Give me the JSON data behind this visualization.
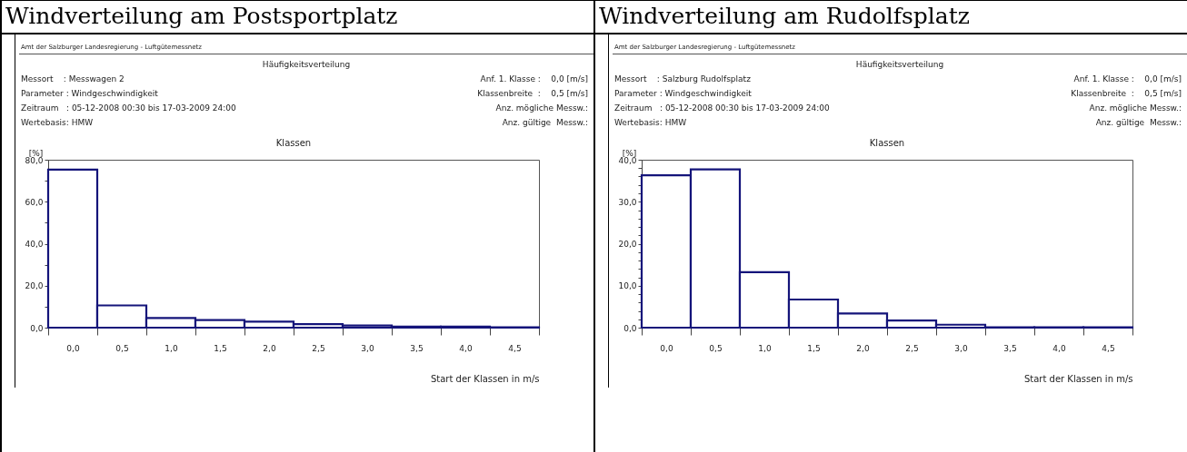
{
  "chart_data": [
    {
      "type": "bar",
      "title": "Windverteilung am Postsportplatz",
      "subtitle": "Häufigkeitsverteilung",
      "annotations": [
        "Amt der Salzburger Landesregierung - Luftgütemessnetz",
        "Messort    : Messwagen 2",
        "Anf. 1. Klasse :    0,0 [m/s]",
        "Parameter : Windgeschwindigkeit",
        "Klassenbreite  :    0,5 [m/s]",
        "Zeitraum   : 05-12-2008 00:30 bis 17-03-2009 24:00",
        "Anz. mögliche Messw.:",
        "Wertebasis: HMW",
        "Anz. gültige  Messw.:",
        "Klassen"
      ],
      "xlabel": "Start der Klassen in m/s",
      "ylabel": "[%]",
      "categories": [
        "0,0",
        "0,5",
        "1,0",
        "1,5",
        "2,0",
        "2,5",
        "3,0",
        "3,5",
        "4,0",
        "4,5"
      ],
      "values": [
        75.3,
        10.6,
        4.6,
        3.6,
        2.9,
        1.7,
        1.0,
        0.5,
        0.5,
        0.2
      ],
      "color": "#14147a",
      "ylim": [
        0,
        80
      ],
      "yticks": [
        {
          "value": 0,
          "label": "0,0"
        },
        {
          "value": 10,
          "label": null
        },
        {
          "value": 20,
          "label": "20,0"
        },
        {
          "value": 30,
          "label": null
        },
        {
          "value": 40,
          "label": "40,0"
        },
        {
          "value": 50,
          "label": null
        },
        {
          "value": 60,
          "label": "60,0"
        },
        {
          "value": 70,
          "label": null
        },
        {
          "value": 80,
          "label": "80,0"
        }
      ],
      "grid": false
    },
    {
      "type": "bar",
      "title": "Windverteilung am Rudolfsplatz",
      "subtitle": "Häufigkeitsverteilung",
      "annotations": [
        "Amt der Salzburger Landesregierung - Luftgütemessnetz",
        "Messort    : Salzburg Rudolfsplatz",
        "Anf. 1. Klasse :    0,0 [m/s]",
        "Parameter : Windgeschwindigkeit",
        "Klassenbreite  :    0,5 [m/s]",
        "Zeitraum   : 05-12-2008 00:30 bis 17-03-2009 24:00",
        "Anz. mögliche Messw.:",
        "Wertebasis: HMW",
        "Anz. gültige  Messw.:",
        "Klassen"
      ],
      "xlabel": "Start der Klassen in m/s",
      "ylabel": "[%]",
      "categories": [
        "0,0",
        "0,5",
        "1,0",
        "1,5",
        "2,0",
        "2,5",
        "3,0",
        "3,5",
        "4,0",
        "4,5"
      ],
      "values": [
        36.3,
        37.7,
        13.2,
        6.7,
        3.4,
        1.7,
        0.7,
        0.1,
        0.1,
        0.1
      ],
      "color": "#14147a",
      "ylim": [
        0,
        40
      ],
      "yticks": [
        {
          "value": 0,
          "label": "0,0"
        },
        {
          "value": 2,
          "label": null
        },
        {
          "value": 4,
          "label": null
        },
        {
          "value": 6,
          "label": null
        },
        {
          "value": 8,
          "label": null
        },
        {
          "value": 10,
          "label": "10,0"
        },
        {
          "value": 12,
          "label": null
        },
        {
          "value": 14,
          "label": null
        },
        {
          "value": 16,
          "label": null
        },
        {
          "value": 18,
          "label": null
        },
        {
          "value": 20,
          "label": "20,0"
        },
        {
          "value": 22,
          "label": null
        },
        {
          "value": 24,
          "label": null
        },
        {
          "value": 26,
          "label": null
        },
        {
          "value": 28,
          "label": null
        },
        {
          "value": 30,
          "label": "30,0"
        },
        {
          "value": 32,
          "label": null
        },
        {
          "value": 34,
          "label": null
        },
        {
          "value": 36,
          "label": null
        },
        {
          "value": 38,
          "label": null
        },
        {
          "value": 40,
          "label": "40,0"
        }
      ],
      "grid": false
    }
  ]
}
